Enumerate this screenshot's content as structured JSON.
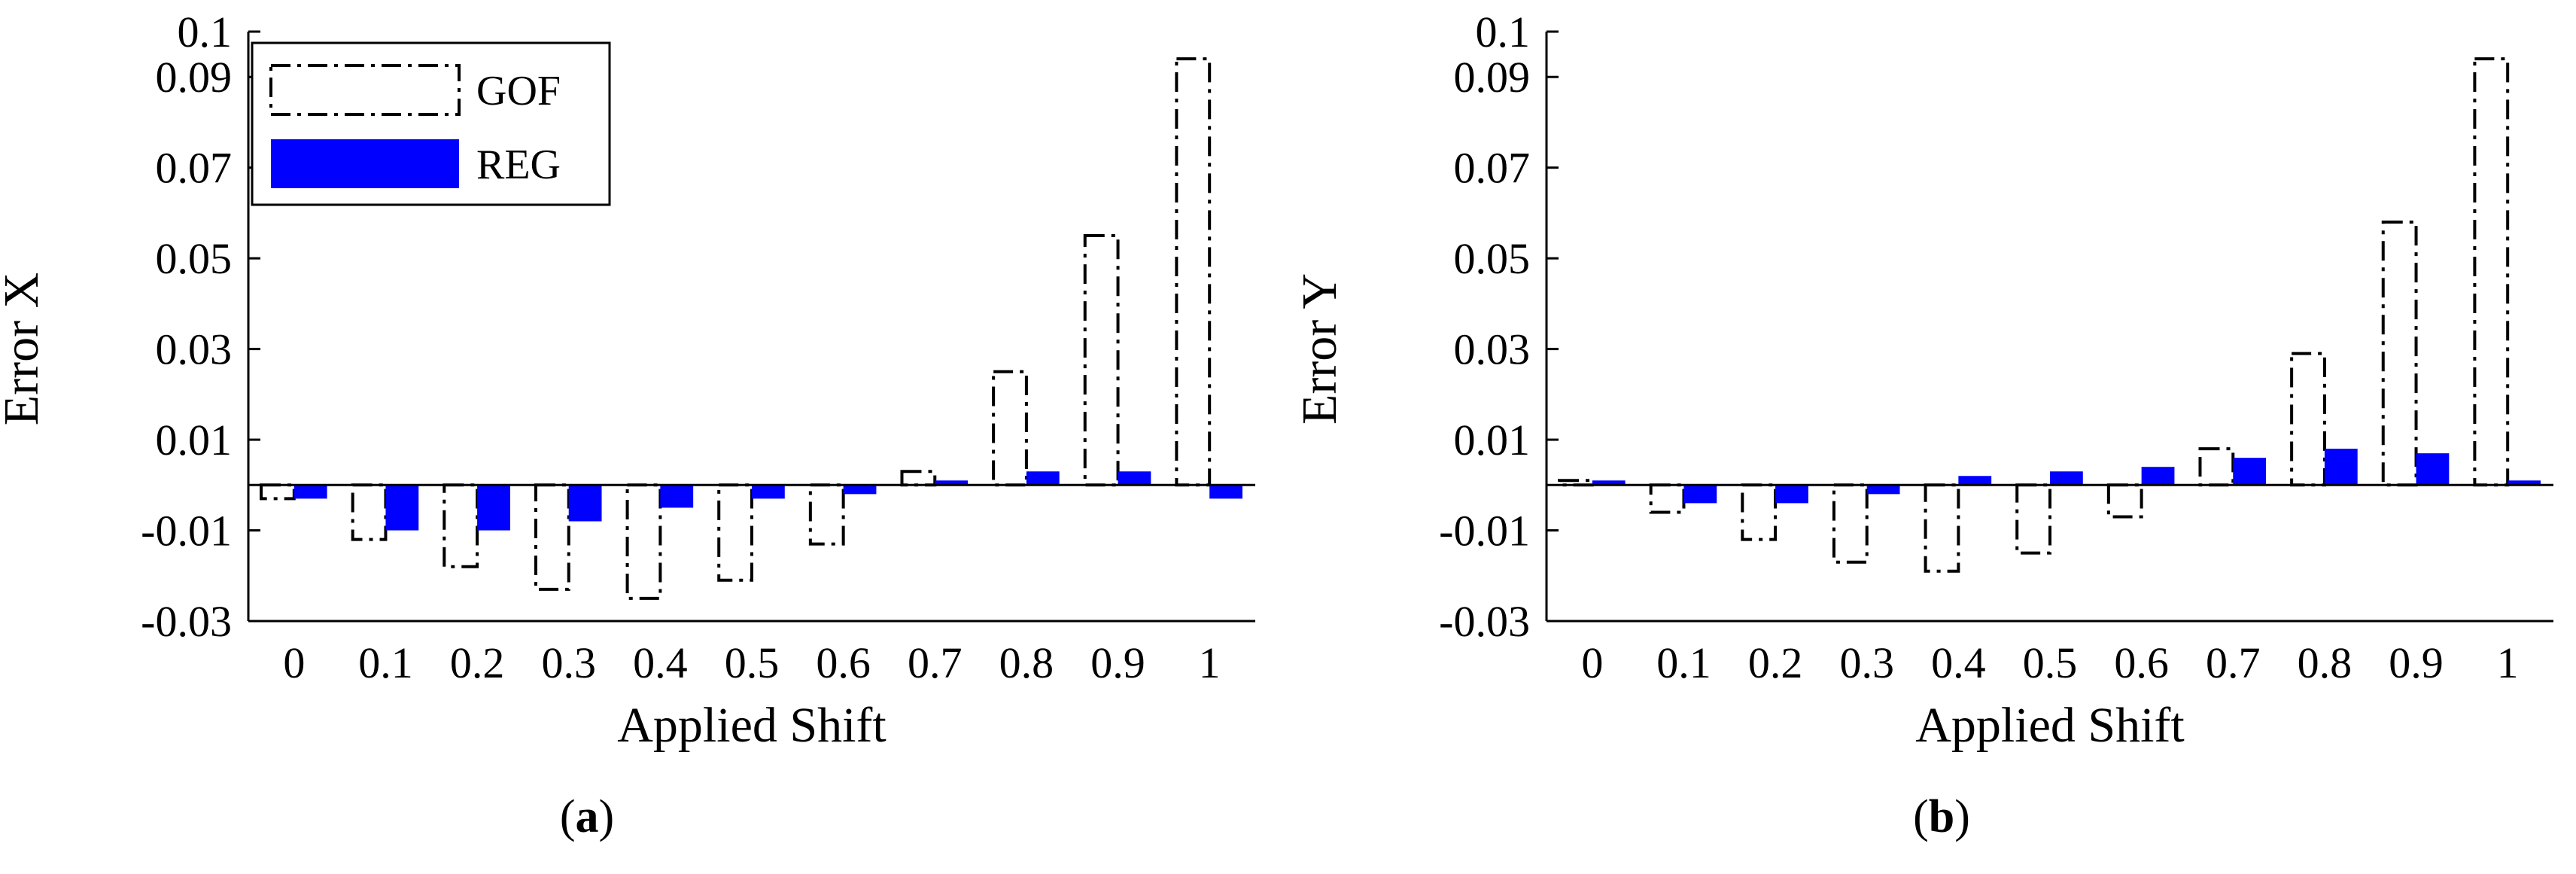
{
  "chart_data": [
    {
      "type": "bar",
      "panel_label": "(a)",
      "panel_letter": "a",
      "xlabel": "Applied Shift",
      "ylabel": "Error X",
      "ylim": [
        -0.03,
        0.1
      ],
      "yticks": [
        -0.03,
        -0.01,
        0.01,
        0.03,
        0.05,
        0.07,
        0.09,
        0.1
      ],
      "ytick_labels": [
        "-0.03",
        "-0.01",
        "0.01",
        "0.03",
        "0.05",
        "0.07",
        "0.09",
        "0.1"
      ],
      "categories": [
        "0",
        "0.1",
        "0.2",
        "0.3",
        "0.4",
        "0.5",
        "0.6",
        "0.7",
        "0.8",
        "0.9",
        "1"
      ],
      "legend": {
        "position": "top-left"
      },
      "series": [
        {
          "name": "GOF",
          "style": "dash-dot-outline",
          "values": [
            -0.003,
            -0.012,
            -0.018,
            -0.023,
            -0.025,
            -0.021,
            -0.013,
            0.003,
            0.025,
            0.055,
            0.094
          ]
        },
        {
          "name": "REG",
          "style": "filled",
          "color": "#0000ff",
          "values": [
            -0.003,
            -0.01,
            -0.01,
            -0.008,
            -0.005,
            -0.003,
            -0.002,
            0.001,
            0.003,
            0.003,
            -0.003
          ]
        }
      ]
    },
    {
      "type": "bar",
      "panel_label": "(b)",
      "panel_letter": "b",
      "xlabel": "Applied Shift",
      "ylabel": "Error Y",
      "ylim": [
        -0.03,
        0.1
      ],
      "yticks": [
        -0.03,
        -0.01,
        0.01,
        0.03,
        0.05,
        0.07,
        0.09,
        0.1
      ],
      "ytick_labels": [
        "-0.03",
        "-0.01",
        "0.01",
        "0.03",
        "0.05",
        "0.07",
        "0.09",
        "0.1"
      ],
      "categories": [
        "0",
        "0.1",
        "0.2",
        "0.3",
        "0.4",
        "0.5",
        "0.6",
        "0.7",
        "0.8",
        "0.9",
        "1"
      ],
      "series": [
        {
          "name": "GOF",
          "style": "dash-dot-outline",
          "values": [
            0.001,
            -0.006,
            -0.012,
            -0.017,
            -0.019,
            -0.015,
            -0.007,
            0.008,
            0.029,
            0.058,
            0.094
          ]
        },
        {
          "name": "REG",
          "style": "filled",
          "color": "#0000ff",
          "values": [
            0.001,
            -0.004,
            -0.004,
            -0.002,
            0.002,
            0.003,
            0.004,
            0.006,
            0.008,
            0.007,
            0.001
          ]
        }
      ]
    }
  ]
}
